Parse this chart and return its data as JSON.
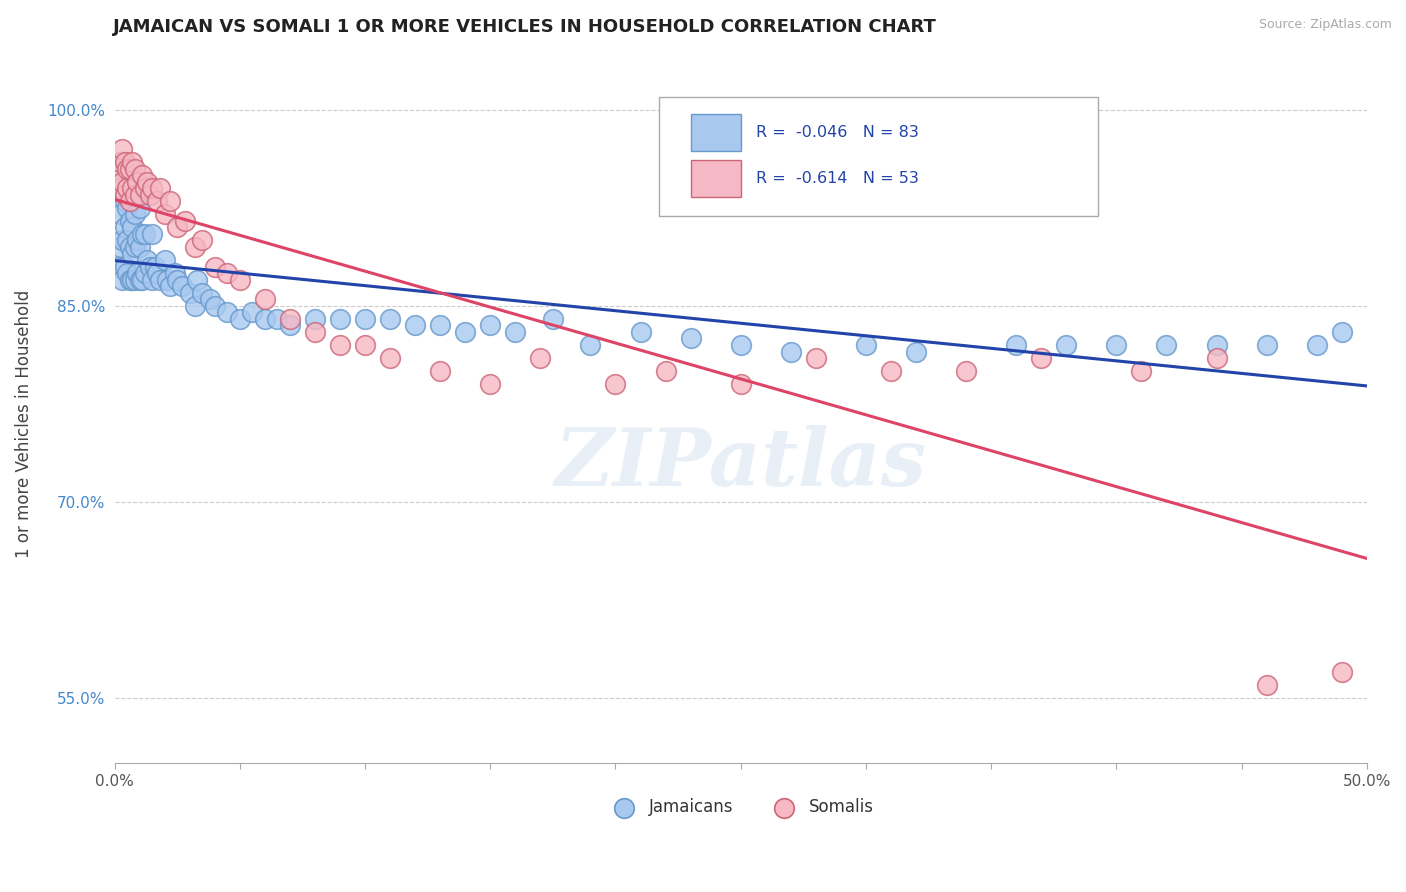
{
  "title": "JAMAICAN VS SOMALI 1 OR MORE VEHICLES IN HOUSEHOLD CORRELATION CHART",
  "source": "Source: ZipAtlas.com",
  "ylabel": "1 or more Vehicles in Household",
  "xlim": [
    0.0,
    0.5
  ],
  "ylim": [
    0.5,
    1.02
  ],
  "xtick_labels": [
    "0.0%",
    "",
    "",
    "",
    "",
    "",
    "",
    "",
    "",
    "",
    "50.0%"
  ],
  "xtick_vals": [
    0.0,
    0.05,
    0.1,
    0.15,
    0.2,
    0.25,
    0.3,
    0.35,
    0.4,
    0.45,
    0.5
  ],
  "ytick_labels": [
    "55.0%",
    "70.0%",
    "85.0%",
    "100.0%"
  ],
  "ytick_vals": [
    0.55,
    0.7,
    0.85,
    1.0
  ],
  "jamaican_color": "#a8c8f0",
  "jamaican_edge": "#6699cc",
  "somali_color": "#f5b8c4",
  "somali_edge": "#cc6677",
  "trend_jamaican_color": "#2244aa",
  "trend_somali_color": "#dd4466",
  "R_jamaican": -0.046,
  "N_jamaican": 83,
  "R_somali": -0.614,
  "N_somali": 53,
  "legend_label_jamaican": "Jamaicans",
  "legend_label_somali": "Somalis",
  "watermark": "ZIPatlas",
  "jamaican_x": [
    0.001,
    0.002,
    0.002,
    0.003,
    0.003,
    0.003,
    0.004,
    0.004,
    0.004,
    0.004,
    0.005,
    0.005,
    0.005,
    0.006,
    0.006,
    0.006,
    0.007,
    0.007,
    0.007,
    0.007,
    0.008,
    0.008,
    0.008,
    0.009,
    0.009,
    0.009,
    0.01,
    0.01,
    0.01,
    0.011,
    0.011,
    0.012,
    0.012,
    0.013,
    0.014,
    0.015,
    0.015,
    0.016,
    0.017,
    0.018,
    0.02,
    0.021,
    0.022,
    0.024,
    0.025,
    0.027,
    0.03,
    0.032,
    0.033,
    0.035,
    0.038,
    0.04,
    0.045,
    0.05,
    0.055,
    0.06,
    0.065,
    0.07,
    0.08,
    0.09,
    0.1,
    0.11,
    0.12,
    0.13,
    0.14,
    0.15,
    0.16,
    0.175,
    0.19,
    0.21,
    0.23,
    0.25,
    0.27,
    0.3,
    0.32,
    0.36,
    0.38,
    0.4,
    0.42,
    0.44,
    0.46,
    0.48,
    0.49
  ],
  "jamaican_y": [
    0.88,
    0.895,
    0.92,
    0.87,
    0.9,
    0.94,
    0.88,
    0.91,
    0.93,
    0.96,
    0.875,
    0.9,
    0.925,
    0.87,
    0.895,
    0.915,
    0.87,
    0.89,
    0.91,
    0.95,
    0.87,
    0.895,
    0.92,
    0.875,
    0.9,
    0.935,
    0.87,
    0.895,
    0.925,
    0.87,
    0.905,
    0.875,
    0.905,
    0.885,
    0.88,
    0.87,
    0.905,
    0.88,
    0.875,
    0.87,
    0.885,
    0.87,
    0.865,
    0.875,
    0.87,
    0.865,
    0.86,
    0.85,
    0.87,
    0.86,
    0.855,
    0.85,
    0.845,
    0.84,
    0.845,
    0.84,
    0.84,
    0.835,
    0.84,
    0.84,
    0.84,
    0.84,
    0.835,
    0.835,
    0.83,
    0.835,
    0.83,
    0.84,
    0.82,
    0.83,
    0.825,
    0.82,
    0.815,
    0.82,
    0.815,
    0.82,
    0.82,
    0.82,
    0.82,
    0.82,
    0.82,
    0.82,
    0.83
  ],
  "somali_x": [
    0.001,
    0.002,
    0.002,
    0.003,
    0.003,
    0.004,
    0.004,
    0.005,
    0.005,
    0.006,
    0.006,
    0.007,
    0.007,
    0.008,
    0.008,
    0.009,
    0.01,
    0.011,
    0.012,
    0.013,
    0.014,
    0.015,
    0.017,
    0.018,
    0.02,
    0.022,
    0.025,
    0.028,
    0.032,
    0.035,
    0.04,
    0.045,
    0.05,
    0.06,
    0.07,
    0.08,
    0.09,
    0.1,
    0.11,
    0.13,
    0.15,
    0.17,
    0.2,
    0.22,
    0.25,
    0.28,
    0.31,
    0.34,
    0.37,
    0.41,
    0.44,
    0.46,
    0.49
  ],
  "somali_y": [
    0.95,
    0.96,
    0.94,
    0.945,
    0.97,
    0.935,
    0.96,
    0.94,
    0.955,
    0.93,
    0.955,
    0.94,
    0.96,
    0.935,
    0.955,
    0.945,
    0.935,
    0.95,
    0.94,
    0.945,
    0.935,
    0.94,
    0.93,
    0.94,
    0.92,
    0.93,
    0.91,
    0.915,
    0.895,
    0.9,
    0.88,
    0.875,
    0.87,
    0.855,
    0.84,
    0.83,
    0.82,
    0.82,
    0.81,
    0.8,
    0.79,
    0.81,
    0.79,
    0.8,
    0.79,
    0.81,
    0.8,
    0.8,
    0.81,
    0.8,
    0.81,
    0.56,
    0.57
  ]
}
